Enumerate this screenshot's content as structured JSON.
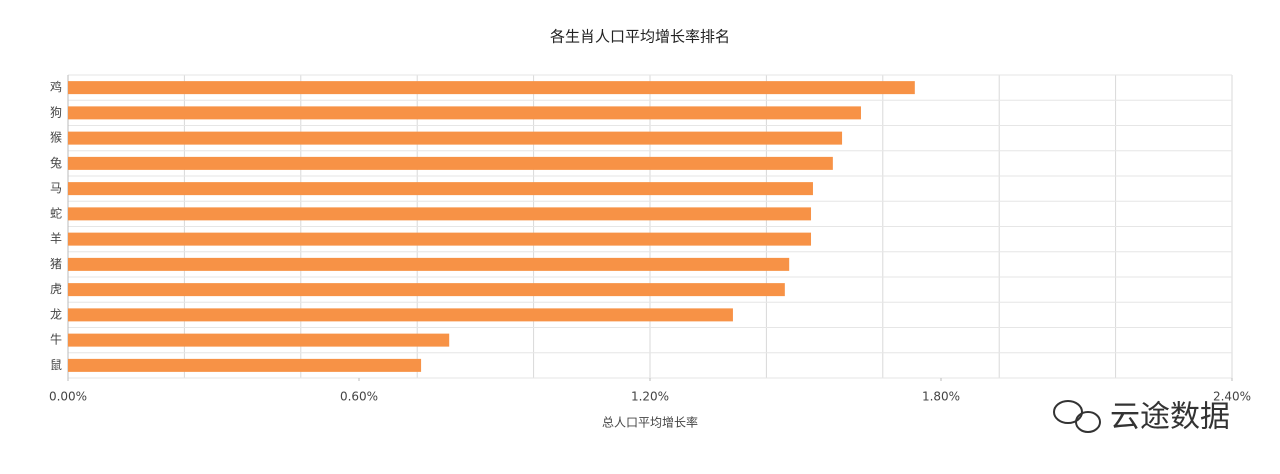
{
  "chart_data": {
    "type": "barh",
    "title": "各生肖人口平均增长率排名",
    "xlabel": "总人口平均增长率",
    "categories": [
      "鸡",
      "狗",
      "猴",
      "兔",
      "马",
      "蛇",
      "羊",
      "猪",
      "虎",
      "龙",
      "牛",
      "鼠"
    ],
    "values": [
      1.746,
      1.635,
      1.596,
      1.577,
      1.536,
      1.532,
      1.532,
      1.487,
      1.478,
      1.371,
      0.786,
      0.728
    ],
    "color": "#f79246",
    "xlim": [
      0,
      2.4
    ],
    "xticks": [
      {
        "value": 0,
        "label": "0.00%"
      },
      {
        "value": 0.6,
        "label": "0.60%"
      },
      {
        "value": 1.2,
        "label": "1.20%"
      },
      {
        "value": 1.8,
        "label": "1.80%"
      },
      {
        "value": 2.4,
        "label": "2.40%"
      }
    ],
    "xgrid": [
      0,
      0.24,
      0.48,
      0.72,
      0.96,
      1.2,
      1.44,
      1.68,
      1.92,
      2.16,
      2.4
    ],
    "grid": true
  },
  "watermark": "云途数据"
}
